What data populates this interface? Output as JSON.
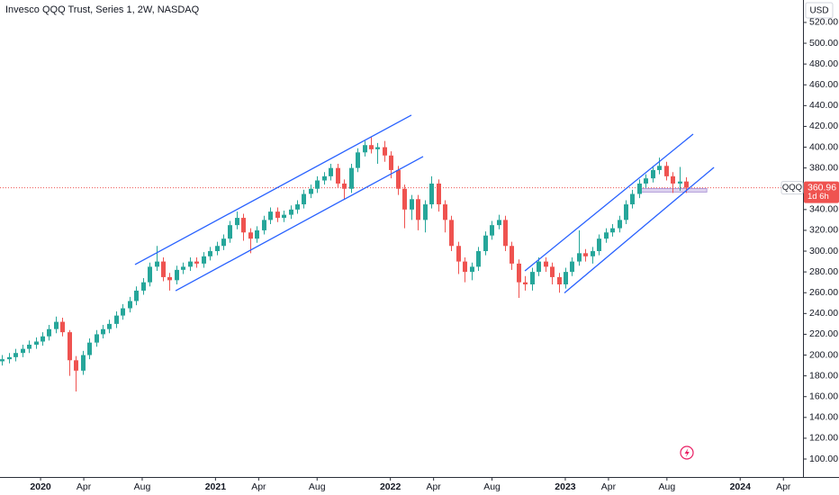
{
  "chart_data": {
    "type": "candlestick",
    "title": "Invesco QQQ Trust, Series 1, 2W, NASDAQ",
    "currency": "USD",
    "symbol": "QQQ",
    "countdown": "1d 6h",
    "up_color": "#26a69a",
    "down_color": "#ef5350",
    "x": [
      2019.78,
      2019.818,
      2019.857,
      2019.895,
      2019.933,
      2019.972,
      2020.01,
      2020.048,
      2020.087,
      2020.125,
      2020.163,
      2020.202,
      2020.24,
      2020.278,
      2020.317,
      2020.355,
      2020.393,
      2020.432,
      2020.47,
      2020.508,
      2020.547,
      2020.585,
      2020.623,
      2020.662,
      2020.7,
      2020.738,
      2020.777,
      2020.815,
      2020.853,
      2020.892,
      2020.93,
      2020.968,
      2021.007,
      2021.045,
      2021.083,
      2021.122,
      2021.16,
      2021.198,
      2021.237,
      2021.275,
      2021.313,
      2021.352,
      2021.39,
      2021.428,
      2021.467,
      2021.505,
      2021.543,
      2021.582,
      2021.62,
      2021.658,
      2021.697,
      2021.735,
      2021.773,
      2021.812,
      2021.85,
      2021.888,
      2021.927,
      2021.965,
      2022.003,
      2022.042,
      2022.08,
      2022.118,
      2022.157,
      2022.195,
      2022.233,
      2022.272,
      2022.31,
      2022.348,
      2022.387,
      2022.425,
      2022.463,
      2022.502,
      2022.54,
      2022.578,
      2022.617,
      2022.655,
      2022.693,
      2022.732,
      2022.77,
      2022.808,
      2022.847,
      2022.885,
      2022.923,
      2022.962,
      2023.0,
      2023.038,
      2023.077,
      2023.115,
      2023.153,
      2023.192,
      2023.23,
      2023.268,
      2023.307,
      2023.345,
      2023.383,
      2023.422,
      2023.46,
      2023.498,
      2023.537,
      2023.575,
      2023.613,
      2023.652,
      2023.69
    ],
    "open": [
      194,
      196,
      198,
      202,
      206,
      210,
      213,
      218,
      225,
      232,
      222,
      195,
      185,
      200,
      212,
      220,
      225,
      230,
      238,
      245,
      252,
      262,
      270,
      285,
      290,
      275,
      272,
      282,
      285,
      290,
      288,
      295,
      300,
      305,
      312,
      325,
      332,
      318,
      312,
      320,
      330,
      338,
      332,
      335,
      340,
      345,
      355,
      360,
      368,
      372,
      380,
      365,
      360,
      380,
      395,
      402,
      398,
      400,
      392,
      378,
      360,
      340,
      350,
      330,
      345,
      365,
      345,
      330,
      305,
      290,
      280,
      285,
      300,
      315,
      325,
      330,
      305,
      288,
      270,
      268,
      280,
      290,
      285,
      275,
      268,
      280,
      290,
      298,
      295,
      300,
      312,
      318,
      322,
      330,
      345,
      355,
      365,
      370,
      378,
      382,
      372,
      365,
      367
    ],
    "high": [
      200,
      202,
      206,
      210,
      214,
      217,
      222,
      229,
      237,
      236,
      224,
      199,
      204,
      216,
      224,
      229,
      234,
      242,
      249,
      256,
      266,
      274,
      289,
      305,
      294,
      279,
      286,
      289,
      294,
      294,
      299,
      304,
      309,
      316,
      329,
      338,
      336,
      322,
      324,
      334,
      342,
      342,
      339,
      344,
      349,
      359,
      364,
      372,
      376,
      384,
      384,
      369,
      384,
      399,
      406,
      410,
      404,
      406,
      396,
      382,
      364,
      354,
      354,
      349,
      372,
      369,
      349,
      334,
      309,
      294,
      289,
      304,
      319,
      329,
      335,
      334,
      309,
      292,
      276,
      284,
      294,
      294,
      289,
      279,
      284,
      294,
      320,
      302,
      304,
      316,
      322,
      326,
      334,
      349,
      359,
      369,
      374,
      382,
      390,
      386,
      376,
      381,
      371
    ],
    "low": [
      190,
      192,
      194,
      198,
      202,
      206,
      209,
      214,
      221,
      218,
      180,
      165,
      181,
      196,
      208,
      216,
      221,
      226,
      234,
      241,
      248,
      258,
      266,
      281,
      271,
      262,
      268,
      278,
      281,
      284,
      284,
      291,
      296,
      301,
      308,
      321,
      310,
      298,
      308,
      316,
      326,
      328,
      328,
      331,
      336,
      341,
      351,
      356,
      364,
      368,
      361,
      350,
      356,
      376,
      391,
      394,
      384,
      386,
      370,
      354,
      322,
      330,
      320,
      318,
      341,
      338,
      318,
      300,
      278,
      270,
      272,
      281,
      296,
      311,
      321,
      300,
      282,
      255,
      262,
      262,
      276,
      280,
      268,
      260,
      264,
      276,
      286,
      290,
      288,
      296,
      308,
      314,
      318,
      326,
      341,
      351,
      361,
      366,
      374,
      368,
      356,
      358,
      356
    ],
    "close": [
      196,
      198,
      202,
      206,
      210,
      213,
      218,
      225,
      232,
      222,
      195,
      185,
      200,
      212,
      220,
      225,
      230,
      238,
      245,
      252,
      262,
      270,
      285,
      290,
      275,
      272,
      282,
      285,
      290,
      288,
      295,
      300,
      305,
      312,
      325,
      332,
      318,
      312,
      320,
      330,
      338,
      332,
      335,
      340,
      345,
      355,
      360,
      368,
      372,
      380,
      365,
      360,
      380,
      395,
      402,
      398,
      400,
      392,
      378,
      360,
      340,
      350,
      330,
      345,
      365,
      345,
      330,
      305,
      290,
      280,
      285,
      300,
      315,
      325,
      330,
      305,
      288,
      270,
      268,
      280,
      290,
      285,
      275,
      268,
      280,
      290,
      298,
      295,
      300,
      312,
      318,
      322,
      330,
      345,
      355,
      365,
      370,
      378,
      382,
      372,
      365,
      367,
      360.96
    ],
    "xlim": [
      2019.768,
      2024.359
    ],
    "ylim": [
      82.7,
      541.6
    ],
    "xticks": [
      {
        "value": 2020,
        "label": "2020"
      },
      {
        "value": 2020.247,
        "label": "Apr"
      },
      {
        "value": 2020.581,
        "label": "Aug"
      },
      {
        "value": 2021,
        "label": "2021"
      },
      {
        "value": 2021.247,
        "label": "Apr"
      },
      {
        "value": 2021.581,
        "label": "Aug"
      },
      {
        "value": 2022,
        "label": "2022"
      },
      {
        "value": 2022.247,
        "label": "Apr"
      },
      {
        "value": 2022.581,
        "label": "Aug"
      },
      {
        "value": 2023,
        "label": "2023"
      },
      {
        "value": 2023.247,
        "label": "Apr"
      },
      {
        "value": 2023.581,
        "label": "Aug"
      },
      {
        "value": 2024,
        "label": "2024"
      },
      {
        "value": 2024.247,
        "label": "Apr"
      }
    ],
    "yticks": [
      {
        "value": 100,
        "label": "100.00"
      },
      {
        "value": 120,
        "label": "120.00"
      },
      {
        "value": 140,
        "label": "140.00"
      },
      {
        "value": 160,
        "label": "160.00"
      },
      {
        "value": 180,
        "label": "180.00"
      },
      {
        "value": 200,
        "label": "200.00"
      },
      {
        "value": 220,
        "label": "220.00"
      },
      {
        "value": 240,
        "label": "240.00"
      },
      {
        "value": 260,
        "label": "260.00"
      },
      {
        "value": 280,
        "label": "280.00"
      },
      {
        "value": 300,
        "label": "300.00"
      },
      {
        "value": 320,
        "label": "320.00"
      },
      {
        "value": 340,
        "label": "340.00"
      },
      {
        "value": 360,
        "label": "360.00"
      },
      {
        "value": 380,
        "label": "380.00"
      },
      {
        "value": 400,
        "label": "400.00"
      },
      {
        "value": 420,
        "label": "420.00"
      },
      {
        "value": 440,
        "label": "440.00"
      },
      {
        "value": 460,
        "label": "460.00"
      },
      {
        "value": 480,
        "label": "480.00"
      },
      {
        "value": 500,
        "label": "500.00"
      },
      {
        "value": 520,
        "label": "520.00"
      }
    ],
    "trendlines": [
      {
        "color": "#2962ff",
        "x": [
          2020.54,
          2022.12
        ],
        "y": [
          287.1,
          430.8
        ]
      },
      {
        "color": "#2962ff",
        "x": [
          2020.772,
          2022.187
        ],
        "y": [
          261.9,
          391.0
        ]
      },
      {
        "color": "#2962ff",
        "x": [
          2022.769,
          2023.731
        ],
        "y": [
          281.0,
          412.6
        ]
      },
      {
        "color": "#2962ff",
        "x": [
          2022.995,
          2023.85
        ],
        "y": [
          259.8,
          380.6
        ]
      }
    ],
    "highlight_zone": {
      "color": "#b39ddb",
      "x": [
        2023.423,
        2023.809
      ],
      "y": [
        356.8,
        360.2
      ]
    }
  }
}
